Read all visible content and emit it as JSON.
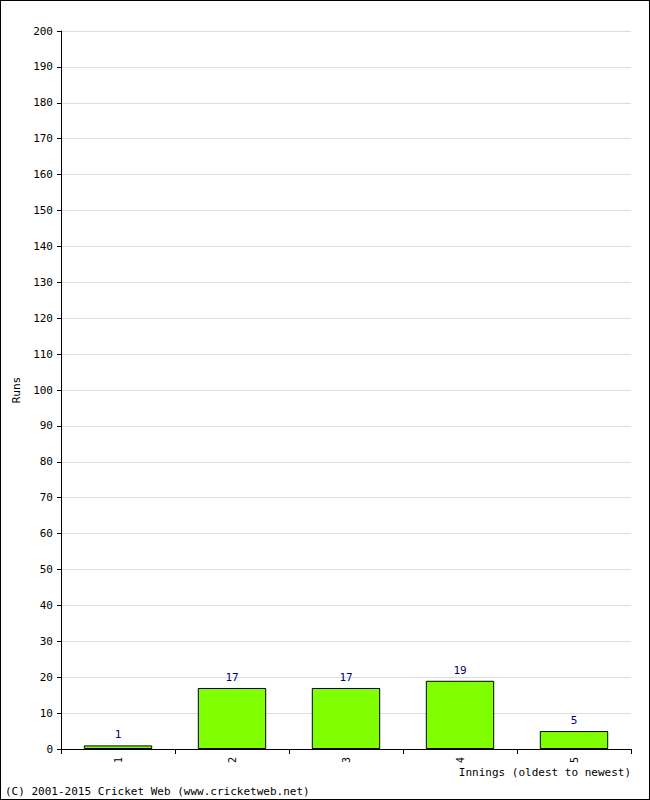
{
  "chart_data": {
    "type": "bar",
    "x_label": "Innings (oldest to newest)",
    "y_label": "Runs",
    "categories": [
      "1",
      "2",
      "3",
      "4",
      "5"
    ],
    "values": [
      1,
      17,
      17,
      19,
      5
    ],
    "color": "#80ff00",
    "ylim": [
      0,
      200
    ],
    "yticks": [
      0,
      10,
      20,
      30,
      40,
      50,
      60,
      70,
      80,
      90,
      100,
      110,
      120,
      130,
      140,
      150,
      160,
      170,
      180,
      190,
      200
    ],
    "grid": true,
    "data_labels": true,
    "annotations": [
      "(C) 2001-2015 Cricket Web (www.cricketweb.net)"
    ]
  }
}
